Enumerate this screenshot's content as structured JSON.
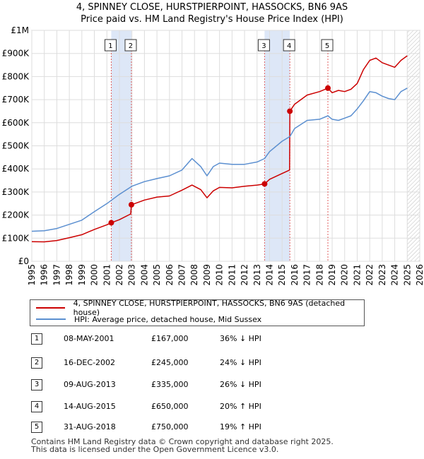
{
  "title_line1": "4, SPINNEY CLOSE, HURSTPIERPOINT, HASSOCKS, BN6 9AS",
  "title_line2": "Price paid vs. HM Land Registry's House Price Index (HPI)",
  "colors": {
    "property": "#cc0000",
    "hpi": "#5b8fd0",
    "band": "#dde7f7",
    "grid": "#dddddd",
    "vline": "#e06060"
  },
  "chart_data": {
    "type": "line",
    "xlim": [
      1995,
      2026
    ],
    "ylim": [
      0,
      1000000
    ],
    "y_ticks": [
      {
        "value": 0,
        "label": "£0"
      },
      {
        "value": 100000,
        "label": "£100K"
      },
      {
        "value": 200000,
        "label": "£200K"
      },
      {
        "value": 300000,
        "label": "£300K"
      },
      {
        "value": 400000,
        "label": "£400K"
      },
      {
        "value": 500000,
        "label": "£500K"
      },
      {
        "value": 600000,
        "label": "£600K"
      },
      {
        "value": 700000,
        "label": "£700K"
      },
      {
        "value": 800000,
        "label": "£800K"
      },
      {
        "value": 900000,
        "label": "£900K"
      },
      {
        "value": 1000000,
        "label": "£1M"
      }
    ],
    "x_ticks": [
      "1995",
      "1996",
      "1997",
      "1998",
      "1999",
      "2000",
      "2001",
      "2002",
      "2003",
      "2004",
      "2005",
      "2006",
      "2007",
      "2008",
      "2009",
      "2010",
      "2011",
      "2012",
      "2013",
      "2014",
      "2015",
      "2016",
      "2017",
      "2018",
      "2019",
      "2020",
      "2021",
      "2022",
      "2023",
      "2024",
      "2025",
      "2026"
    ],
    "shaded_bands": [
      [
        2001.35,
        2002.96
      ],
      [
        2013.6,
        2015.62
      ]
    ],
    "forecast_from": 2025.0,
    "series": [
      {
        "name": "4, SPINNEY CLOSE, HURSTPIERPOINT, HASSOCKS, BN6 9AS (detached house)",
        "color": "#cc0000",
        "points": [
          [
            1995.0,
            85000
          ],
          [
            1996.0,
            84000
          ],
          [
            1997.0,
            90000
          ],
          [
            1998.0,
            102000
          ],
          [
            1999.0,
            115000
          ],
          [
            2000.0,
            138000
          ],
          [
            2001.0,
            158000
          ],
          [
            2001.35,
            167000
          ],
          [
            2002.0,
            180000
          ],
          [
            2002.9,
            205000
          ],
          [
            2002.96,
            245000
          ],
          [
            2003.5,
            255000
          ],
          [
            2004.0,
            265000
          ],
          [
            2005.0,
            278000
          ],
          [
            2006.0,
            283000
          ],
          [
            2007.0,
            308000
          ],
          [
            2007.8,
            330000
          ],
          [
            2008.5,
            310000
          ],
          [
            2009.0,
            275000
          ],
          [
            2009.5,
            305000
          ],
          [
            2010.0,
            320000
          ],
          [
            2011.0,
            318000
          ],
          [
            2012.0,
            325000
          ],
          [
            2013.0,
            330000
          ],
          [
            2013.6,
            335000
          ],
          [
            2014.0,
            355000
          ],
          [
            2015.0,
            380000
          ],
          [
            2015.6,
            395000
          ],
          [
            2015.62,
            650000
          ],
          [
            2016.0,
            680000
          ],
          [
            2017.0,
            720000
          ],
          [
            2018.0,
            735000
          ],
          [
            2018.66,
            750000
          ],
          [
            2019.0,
            730000
          ],
          [
            2019.5,
            740000
          ],
          [
            2020.0,
            735000
          ],
          [
            2020.5,
            745000
          ],
          [
            2021.0,
            770000
          ],
          [
            2021.5,
            830000
          ],
          [
            2022.0,
            870000
          ],
          [
            2022.5,
            880000
          ],
          [
            2023.0,
            860000
          ],
          [
            2023.5,
            850000
          ],
          [
            2024.0,
            840000
          ],
          [
            2024.5,
            870000
          ],
          [
            2025.0,
            890000
          ]
        ]
      },
      {
        "name": "HPI: Average price, detached house, Mid Sussex",
        "color": "#5b8fd0",
        "points": [
          [
            1995.0,
            130000
          ],
          [
            1996.0,
            132000
          ],
          [
            1997.0,
            142000
          ],
          [
            1998.0,
            160000
          ],
          [
            1999.0,
            178000
          ],
          [
            2000.0,
            215000
          ],
          [
            2001.0,
            250000
          ],
          [
            2002.0,
            290000
          ],
          [
            2003.0,
            325000
          ],
          [
            2004.0,
            345000
          ],
          [
            2005.0,
            358000
          ],
          [
            2006.0,
            370000
          ],
          [
            2007.0,
            395000
          ],
          [
            2007.8,
            445000
          ],
          [
            2008.5,
            410000
          ],
          [
            2009.0,
            370000
          ],
          [
            2009.5,
            410000
          ],
          [
            2010.0,
            425000
          ],
          [
            2011.0,
            420000
          ],
          [
            2012.0,
            420000
          ],
          [
            2013.0,
            430000
          ],
          [
            2013.6,
            445000
          ],
          [
            2014.0,
            475000
          ],
          [
            2015.0,
            520000
          ],
          [
            2015.62,
            540000
          ],
          [
            2016.0,
            575000
          ],
          [
            2017.0,
            610000
          ],
          [
            2018.0,
            615000
          ],
          [
            2018.66,
            630000
          ],
          [
            2019.0,
            615000
          ],
          [
            2019.5,
            610000
          ],
          [
            2020.0,
            620000
          ],
          [
            2020.5,
            630000
          ],
          [
            2021.0,
            660000
          ],
          [
            2021.5,
            695000
          ],
          [
            2022.0,
            735000
          ],
          [
            2022.5,
            730000
          ],
          [
            2023.0,
            715000
          ],
          [
            2023.5,
            705000
          ],
          [
            2024.0,
            700000
          ],
          [
            2024.5,
            735000
          ],
          [
            2025.0,
            750000
          ]
        ]
      }
    ],
    "sales": [
      {
        "label": "1",
        "x": 2001.35,
        "y": 167000
      },
      {
        "label": "2",
        "x": 2002.96,
        "y": 245000
      },
      {
        "label": "3",
        "x": 2013.6,
        "y": 335000
      },
      {
        "label": "4",
        "x": 2015.62,
        "y": 650000
      },
      {
        "label": "5",
        "x": 2018.66,
        "y": 750000
      }
    ]
  },
  "legend": {
    "property": "4, SPINNEY CLOSE, HURSTPIERPOINT, HASSOCKS, BN6 9AS (detached house)",
    "hpi": "HPI: Average price, detached house, Mid Sussex"
  },
  "transactions": [
    {
      "num": "1",
      "date": "08-MAY-2001",
      "price": "£167,000",
      "hpi": "36% ↓ HPI"
    },
    {
      "num": "2",
      "date": "16-DEC-2002",
      "price": "£245,000",
      "hpi": "24% ↓ HPI"
    },
    {
      "num": "3",
      "date": "09-AUG-2013",
      "price": "£335,000",
      "hpi": "26% ↓ HPI"
    },
    {
      "num": "4",
      "date": "14-AUG-2015",
      "price": "£650,000",
      "hpi": "20% ↑ HPI"
    },
    {
      "num": "5",
      "date": "31-AUG-2018",
      "price": "£750,000",
      "hpi": "19% ↑ HPI"
    }
  ],
  "footer_line1": "Contains HM Land Registry data © Crown copyright and database right 2025.",
  "footer_line2": "This data is licensed under the Open Government Licence v3.0."
}
